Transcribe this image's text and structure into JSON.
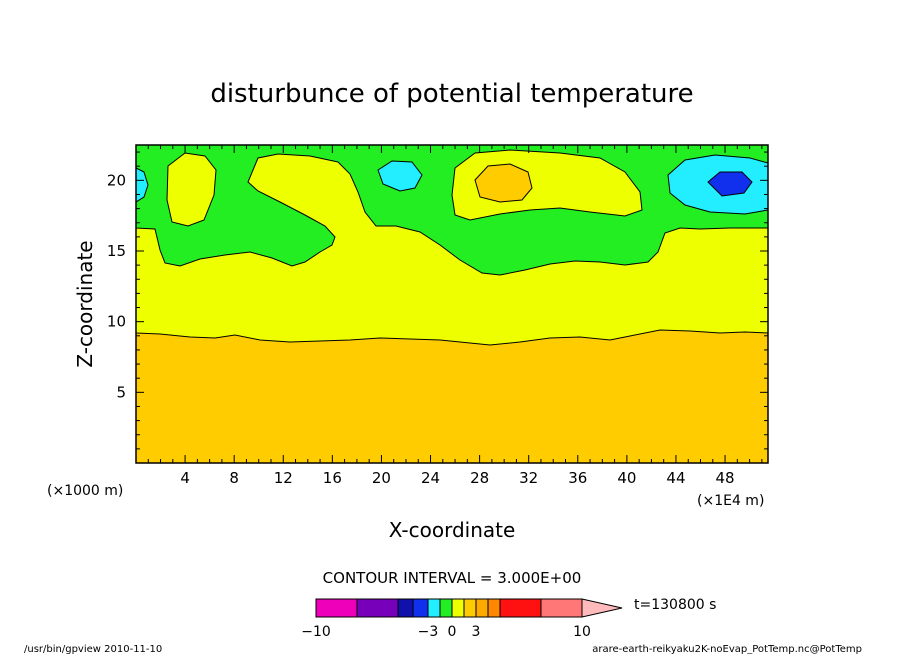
{
  "chart_data": {
    "type": "heatmap",
    "title": "disturbunce of potential temperature",
    "xlabel": "X-coordinate",
    "ylabel": "Z-coordinate",
    "x_unit_left": "(×1000 m)",
    "x_unit_right": "(×1E4 m)",
    "xlim": [
      0,
      51.5
    ],
    "ylim": [
      0,
      22.5
    ],
    "xticks": [
      "4",
      "8",
      "12",
      "16",
      "20",
      "24",
      "28",
      "32",
      "36",
      "40",
      "44",
      "48"
    ],
    "yticks": [
      "5",
      "10",
      "15",
      "20"
    ],
    "contour_interval_text": "CONTOUR INTERVAL = 3.000E+00",
    "time_text": "t=130800 s",
    "colorbar_labels": [
      "−10",
      "−3",
      "0",
      "3",
      "10"
    ],
    "footer_left": "/usr/bin/gpview   2010-11-10",
    "footer_right": "arare-earth-reikyaku2K-noEvap_PotTemp.nc@PotTemp",
    "levels": {
      "orange_fill": "#ffcc00",
      "yellow_fill": "#eeff00",
      "green_fill": "#22ee22",
      "cyan_fill": "#22eeff",
      "blue_fill": "#1030ee"
    },
    "colorbar_colors": [
      "#ee00bb",
      "#7700bb",
      "#1010aa",
      "#1030ee",
      "#22eeff",
      "#22ee22",
      "#eeff00",
      "#ffcc00",
      "#ffaa00",
      "#ff8800",
      "#ff1111",
      "#ff7777",
      "#ffbbbb"
    ]
  }
}
